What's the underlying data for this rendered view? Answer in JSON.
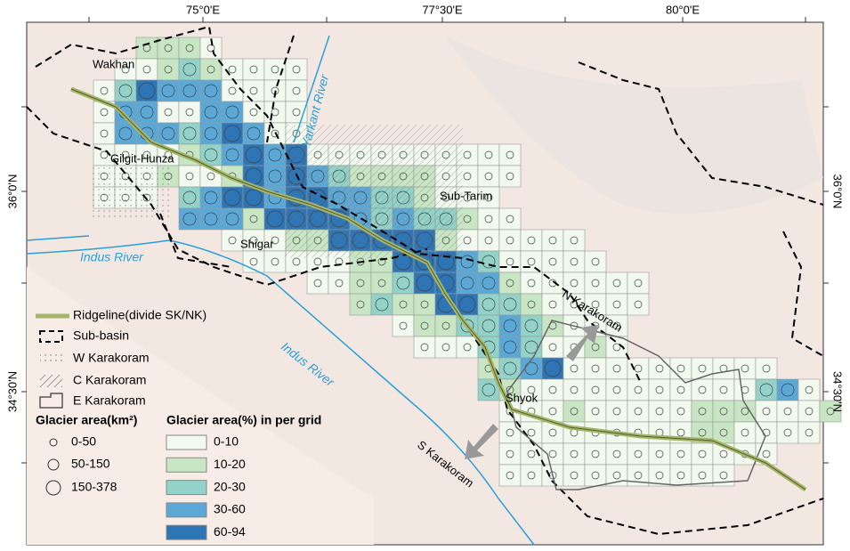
{
  "axes": {
    "top": [
      "75°0'E",
      "77°30'E",
      "80°0'E"
    ],
    "left": [
      "36°0'N",
      "34°30'N"
    ],
    "right": [
      "36°0'N",
      "34°30'N"
    ]
  },
  "places": [
    "Wakhan",
    "Gilgit-Hunza",
    "Sub-Tarim",
    "Shigar",
    "Shyok"
  ],
  "rivers": [
    "Yarkant River",
    "Indus River",
    "Indus River"
  ],
  "regions": [
    "N Karakoram",
    "S Karakoram"
  ],
  "legend": {
    "lines": [
      "Ridgeline(divide SK/NK)",
      "Sub-basin",
      "W Karakoram",
      "C Karakoram",
      "E Karakoram"
    ],
    "size_title": "Glacier area(km²)",
    "size_classes": [
      "0-50",
      "50-150",
      "150-378"
    ],
    "pct_title": "Glacier area(%) in per grid",
    "pct_classes": [
      {
        "label": "0-10",
        "color": "#f2f9ee"
      },
      {
        "label": "10-20",
        "color": "#c9e6c4"
      },
      {
        "label": "20-30",
        "color": "#92d2c8"
      },
      {
        "label": "30-60",
        "color": "#5ba8d6"
      },
      {
        "label": "60-94",
        "color": "#2e75b6"
      }
    ]
  }
}
